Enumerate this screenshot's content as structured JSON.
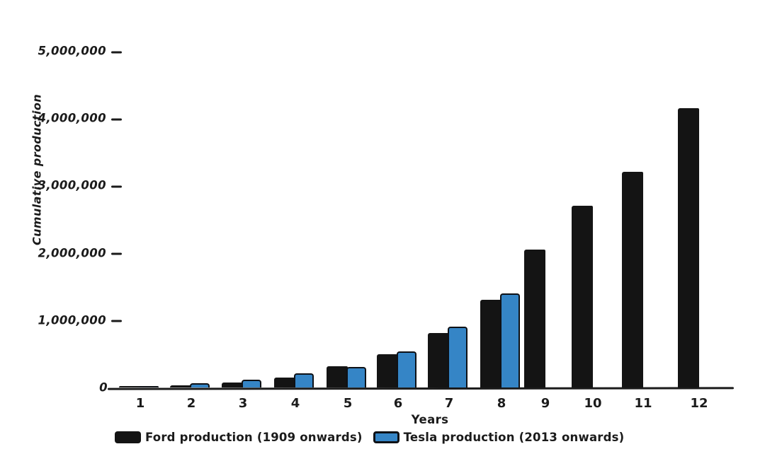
{
  "chart_data": {
    "type": "bar",
    "title": "",
    "xlabel": "Years",
    "ylabel": "Cumulative production",
    "categories": [
      "1",
      "2",
      "3",
      "4",
      "5",
      "6",
      "7",
      "8",
      "9",
      "10",
      "11",
      "12"
    ],
    "series": [
      {
        "name": "Ford production (1909 onwards)",
        "key": "ford",
        "color": "#141414",
        "values": [
          10000,
          30000,
          70000,
          150000,
          320000,
          490000,
          810000,
          1300000,
          2050000,
          2700000,
          3200000,
          4150000
        ]
      },
      {
        "name": "Tesla production (2013 onwards)",
        "key": "tesla",
        "color": "#3585c6",
        "values": [
          25000,
          60000,
          120000,
          210000,
          300000,
          540000,
          900000,
          1400000,
          null,
          null,
          null,
          null
        ]
      }
    ],
    "ylim": [
      0,
      5000000
    ],
    "yticks": [
      {
        "value": 0,
        "label": "0"
      },
      {
        "value": 1000000,
        "label": "1,000,000"
      },
      {
        "value": 2000000,
        "label": "2,000,000"
      },
      {
        "value": 3000000,
        "label": "3,000,000"
      },
      {
        "value": 4000000,
        "label": "4,000,000"
      },
      {
        "value": 5000000,
        "label": "5,000,000"
      }
    ],
    "legend_position": "bottom",
    "grid": false,
    "style": "hand-drawn"
  }
}
